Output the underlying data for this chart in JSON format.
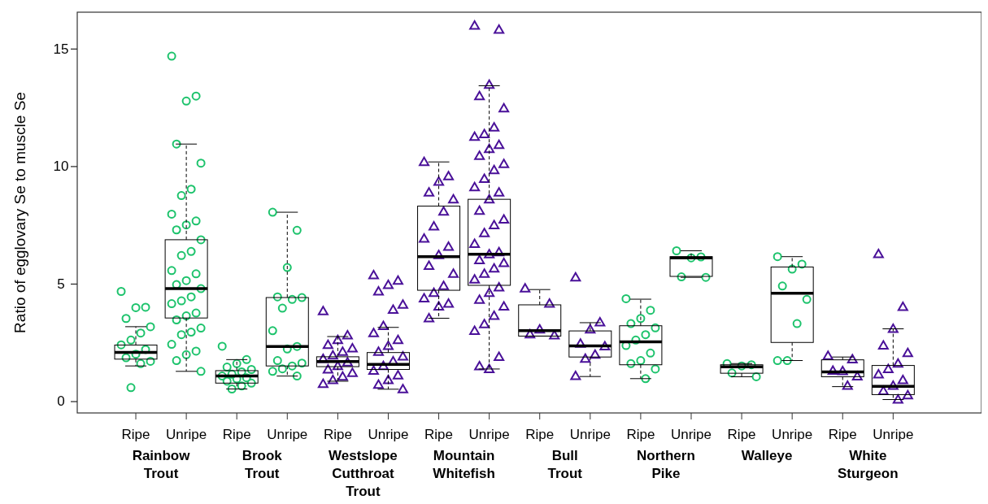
{
  "chart_data": {
    "type": "box",
    "ylabel": "Ratio of egglovary Se to muscle Se",
    "categories": [
      "Ripe",
      "Unripe",
      "Ripe",
      "Unripe",
      "Ripe",
      "Unripe",
      "Ripe",
      "Unripe",
      "Ripe",
      "Unripe",
      "Ripe",
      "Unripe",
      "Ripe",
      "Unripe",
      "Ripe",
      "Unripe"
    ],
    "annotations": [
      "Rainbow Trout",
      "Brook Trout",
      "Westslope Cutthroat Trout",
      "Mountain Whitefish",
      "Bull Trout",
      "Northern Pike",
      "Walleye",
      "White Sturgeon"
    ],
    "ylim": [
      -0.5,
      16.55
    ],
    "yticks": [
      0,
      5,
      10,
      15
    ],
    "colors": [
      "#1dc36c",
      "#1dc36c",
      "#1dc36c",
      "#1dc36c",
      "#4a1199",
      "#4a1199",
      "#4a1199",
      "#4a1199",
      "#4a1199",
      "#4a1199",
      "#1dc36c",
      "#1dc36c",
      "#1dc36c",
      "#1dc36c",
      "#4a1199",
      "#4a1199"
    ],
    "series": [
      {
        "marker": "circle",
        "boxes": [
          {
            "low": 1.5,
            "q1": 1.79,
            "median": 2.08,
            "q3": 2.39,
            "high": 3.17,
            "outliers": [
              4.67,
              4.0,
              3.98,
              3.52,
              3.17,
              2.9,
              2.6,
              2.4,
              2.2,
              2.0,
              1.85,
              1.7,
              1.6,
              0.58
            ]
          },
          {
            "low": 1.27,
            "q1": 3.54,
            "median": 4.79,
            "q3": 6.87,
            "high": 10.94,
            "outliers": [
              14.68,
              12.98,
              12.77,
              10.94,
              10.13,
              9.02,
              8.75,
              7.96,
              7.67,
              7.5,
              7.29,
              6.87,
              6.37,
              6.2,
              5.56,
              5.42,
              5.13,
              4.96,
              4.79,
              4.44,
              4.27,
              4.15,
              3.75,
              3.63,
              3.46,
              3.11,
              2.94,
              2.83,
              2.42,
              2.13,
              1.98,
              1.73,
              1.27
            ]
          },
          {
            "low": 0.52,
            "q1": 0.77,
            "median": 1.07,
            "q3": 1.3,
            "high": 1.77,
            "outliers": [
              2.34,
              1.77,
              1.6,
              1.45,
              1.35,
              1.25,
              1.15,
              1.07,
              1.0,
              0.95,
              0.85,
              0.77,
              0.65,
              0.52
            ]
          },
          {
            "low": 1.07,
            "q1": 1.5,
            "median": 2.33,
            "q3": 4.41,
            "high": 8.04,
            "outliers": [
              8.04,
              7.27,
              5.69,
              4.44,
              4.41,
              4.33,
              3.96,
              3.0,
              2.33,
              2.22,
              1.73,
              1.62,
              1.5,
              1.38,
              1.27,
              1.07
            ]
          },
          null,
          null,
          null,
          null,
          null,
          null,
          {
            "low": 0.96,
            "q1": 1.55,
            "median": 2.53,
            "q3": 3.21,
            "high": 4.34,
            "outliers": [
              4.36,
              3.87,
              3.52,
              3.3,
              3.12,
              2.83,
              2.6,
              2.37,
              2.05,
              1.73,
              1.6,
              1.37,
              0.96
            ]
          },
          {
            "low": 5.27,
            "q1": 5.31,
            "median": 6.1,
            "q3": 6.15,
            "high": 6.4,
            "outliers": [
              6.4,
              6.14,
              6.1,
              5.29,
              5.27
            ]
          },
          {
            "low": 1.04,
            "q1": 1.19,
            "median": 1.46,
            "q3": 1.55,
            "high": 1.6,
            "outliers": [
              1.6,
              1.55,
              1.5,
              1.2,
              1.04
            ]
          },
          {
            "low": 1.73,
            "q1": 2.5,
            "median": 4.59,
            "q3": 5.71,
            "high": 6.15,
            "outliers": [
              6.15,
              5.83,
              5.62,
              4.9,
              4.33,
              3.3,
              1.73,
              1.73
            ]
          },
          null,
          null
        ]
      },
      {
        "marker": "triangle",
        "boxes": [
          null,
          null,
          null,
          null,
          {
            "low": 0.85,
            "q1": 1.47,
            "median": 1.69,
            "q3": 1.89,
            "high": 2.75,
            "outliers": [
              3.83,
              2.8,
              2.6,
              2.4,
              2.25,
              2.1,
              1.95,
              1.8,
              1.65,
              1.5,
              1.35,
              1.2,
              1.05,
              0.9,
              0.74
            ]
          },
          {
            "low": 0.51,
            "q1": 1.35,
            "median": 1.57,
            "q3": 2.07,
            "high": 3.14,
            "outliers": [
              5.36,
              5.13,
              4.95,
              4.67,
              4.11,
              3.89,
              3.2,
              2.9,
              2.6,
              2.35,
              2.1,
              1.9,
              1.7,
              1.5,
              1.3,
              1.1,
              0.9,
              0.7,
              0.51
            ]
          },
          {
            "low": 3.53,
            "q1": 4.72,
            "median": 6.15,
            "q3": 8.3,
            "high": 10.18,
            "outliers": [
              10.18,
              9.57,
              9.34,
              8.88,
              8.59,
              8.07,
              7.44,
              6.92,
              6.57,
              6.22,
              5.76,
              5.42,
              4.9,
              4.61,
              4.38,
              4.15,
              4.03,
              3.53
            ]
          },
          {
            "low": 1.37,
            "q1": 4.93,
            "median": 6.25,
            "q3": 8.59,
            "high": 13.42,
            "outliers": [
              15.98,
              15.81,
              13.46,
              12.98,
              12.46,
              11.65,
              11.36,
              11.25,
              10.9,
              10.73,
              10.44,
              10.09,
              9.83,
              9.46,
              9.11,
              8.88,
              8.59,
              8.1,
              7.73,
              7.49,
              7.15,
              6.69,
              6.34,
              6.25,
              6.0,
              5.88,
              5.65,
              5.42,
              5.18,
              4.84,
              4.61,
              4.32,
              4.03,
              3.63,
              3.28,
              2.99,
              1.89,
              1.37,
              1.49
            ]
          },
          {
            "low": 2.77,
            "q1": 2.77,
            "median": 3.0,
            "q3": 4.1,
            "high": 4.75,
            "outliers": [
              4.8,
              4.15,
              3.05,
              2.85,
              2.8
            ]
          },
          {
            "low": 1.05,
            "q1": 1.88,
            "median": 2.35,
            "q3": 2.99,
            "high": 3.34,
            "outliers": [
              5.27,
              3.36,
              3.05,
              2.45,
              2.34,
              1.98,
              1.81,
              1.07
            ]
          },
          null,
          null,
          null,
          null,
          {
            "low": 0.62,
            "q1": 1.04,
            "median": 1.25,
            "q3": 1.76,
            "high": 1.88,
            "outliers": [
              1.93,
              1.78,
              1.28,
              1.3,
              1.06,
              0.66
            ]
          },
          {
            "low": 0.07,
            "q1": 0.28,
            "median": 0.63,
            "q3": 1.52,
            "high": 3.08,
            "outliers": [
              6.26,
              4.01,
              3.08,
              2.37,
              2.05,
              1.6,
              1.37,
              1.14,
              0.9,
              0.66,
              0.43,
              0.25,
              0.07
            ]
          }
        ]
      }
    ]
  }
}
